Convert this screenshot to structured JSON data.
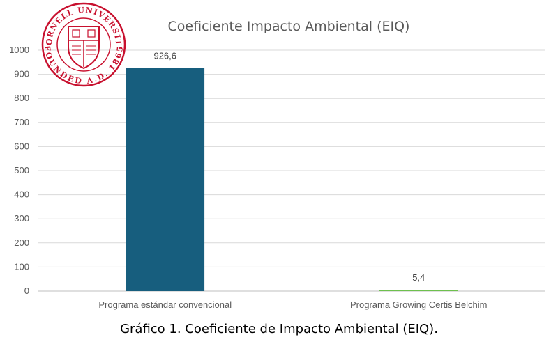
{
  "chart_data": {
    "type": "bar",
    "title": "Coeficiente Impacto Ambiental (EIQ)",
    "categories": [
      "Programa estándar convencional",
      "Programa Growing Certis Belchim"
    ],
    "values": [
      926.6,
      5.4
    ],
    "data_labels": [
      "926,6",
      "5,4"
    ],
    "bar_colors": [
      "#175e7e",
      "#6ec04e"
    ],
    "ylim": [
      0,
      1000
    ],
    "yticks": [
      "0",
      "100",
      "200",
      "300",
      "400",
      "500",
      "600",
      "700",
      "800",
      "900",
      "1000"
    ],
    "grid": true,
    "legend": "none"
  },
  "caption": "Gráfico 1. Coeficiente de Impacto Ambiental (EIQ).",
  "seal": {
    "text_top": "CORNELL UNIVERSITY",
    "text_bottom": "FOUNDED A.D. 1865",
    "color": "#c8102e"
  }
}
